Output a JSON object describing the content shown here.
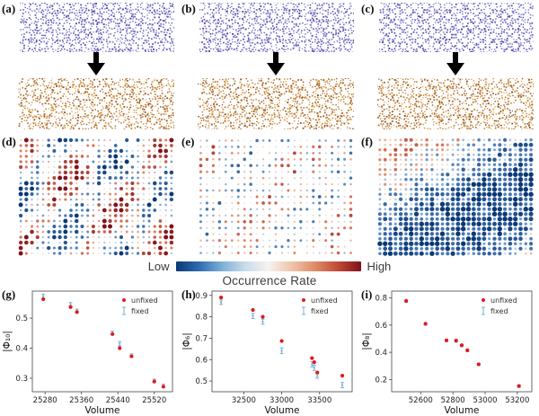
{
  "lattice_panels": [
    {
      "label": "(a)",
      "structure": "quasicrystal-decagonal"
    },
    {
      "label": "(b)",
      "structure": "quasicrystal-decagonal"
    },
    {
      "label": "(c)",
      "structure": "periodic-rows"
    }
  ],
  "dot_panels": [
    {
      "label": "(d)"
    },
    {
      "label": "(e)"
    },
    {
      "label": "(f)"
    }
  ],
  "colorbar": {
    "low_label": "Low",
    "high_label": "High",
    "title": "Occurrence Rate",
    "gradient_left": "#0a3876",
    "gradient_mid": "#f6f3ef",
    "gradient_right": "#7f1119"
  },
  "colors": {
    "lattice_blue": "#6b64bf",
    "lattice_orange": "#c08434",
    "arrow": "#000000",
    "unfixed_marker": "#e01a1a",
    "fixed_marker": "#7ab0d4"
  },
  "chart_data": [
    {
      "panel_label": "(g)",
      "type": "scatter",
      "xlabel": "Volume",
      "ylabel": "|Φ₁₀|",
      "xlim": [
        25252,
        25560
      ],
      "ylim": [
        0.255,
        0.59
      ],
      "xticks": [
        25280,
        25360,
        25440,
        25520
      ],
      "yticks": [
        0.3,
        0.4,
        0.5
      ],
      "legend_position": "upper right",
      "series": [
        {
          "name": "fixed",
          "marker": "errorbar",
          "color": "#7ab0d4",
          "x": [
            25276,
            25336,
            25350,
            25428,
            25444,
            25470,
            25520,
            25540
          ],
          "y": [
            0.573,
            0.546,
            0.525,
            0.452,
            0.415,
            0.376,
            0.292,
            0.275
          ],
          "yerr": [
            0.007,
            0.006,
            0.005,
            0.005,
            0.007,
            0.005,
            0.005,
            0.005
          ]
        },
        {
          "name": "unfixed",
          "marker": "dot",
          "color": "#e01a1a",
          "x": [
            25276,
            25336,
            25350,
            25428,
            25444,
            25470,
            25520,
            25540
          ],
          "y": [
            0.563,
            0.537,
            0.52,
            0.447,
            0.4,
            0.373,
            0.289,
            0.272
          ]
        }
      ]
    },
    {
      "panel_label": "(h)",
      "type": "scatter",
      "xlabel": "Volume",
      "ylabel": "|Φ₆|",
      "xlim": [
        32080,
        33930
      ],
      "ylim": [
        0.45,
        0.92
      ],
      "xticks": [
        32500,
        33000,
        33500
      ],
      "yticks": [
        0.5,
        0.6,
        0.7,
        0.8,
        0.9
      ],
      "legend_position": "upper right",
      "series": [
        {
          "name": "fixed",
          "marker": "errorbar",
          "color": "#7ab0d4",
          "x": [
            32200,
            32620,
            32750,
            33000,
            33400,
            33430,
            33470,
            33800
          ],
          "y": [
            0.868,
            0.804,
            0.777,
            0.641,
            0.578,
            0.562,
            0.523,
            0.481
          ],
          "yerr": [
            0.01,
            0.012,
            0.012,
            0.013,
            0.012,
            0.012,
            0.01,
            0.012
          ]
        },
        {
          "name": "unfixed",
          "marker": "dot",
          "color": "#e01a1a",
          "x": [
            32200,
            32620,
            32750,
            33000,
            33400,
            33430,
            33470,
            33800
          ],
          "y": [
            0.89,
            0.832,
            0.8,
            0.687,
            0.607,
            0.588,
            0.54,
            0.525
          ]
        }
      ]
    },
    {
      "panel_label": "(i)",
      "type": "scatter",
      "xlabel": "Volume",
      "ylabel": "|Φ₈|",
      "xlim": [
        52420,
        53290
      ],
      "ylim": [
        0.11,
        0.85
      ],
      "xticks": [
        52600,
        52800,
        53000,
        53200
      ],
      "yticks": [
        0.2,
        0.4,
        0.6,
        0.8
      ],
      "legend_position": "upper right",
      "series": [
        {
          "name": "fixed",
          "marker": "errorbar",
          "color": "#7ab0d4",
          "x": [
            52510,
            52630,
            52760,
            52820,
            52855,
            52890,
            52960,
            53210
          ],
          "y": [
            0.775,
            0.607,
            0.486,
            0.483,
            0.45,
            0.413,
            0.31,
            0.15
          ],
          "yerr": [
            0.008,
            0.008,
            0.008,
            0.008,
            0.008,
            0.008,
            0.008,
            0.008
          ]
        },
        {
          "name": "unfixed",
          "marker": "dot",
          "color": "#e01a1a",
          "x": [
            52510,
            52630,
            52760,
            52820,
            52855,
            52890,
            52960,
            53210
          ],
          "y": [
            0.778,
            0.61,
            0.488,
            0.486,
            0.452,
            0.415,
            0.312,
            0.152
          ]
        }
      ]
    }
  ],
  "legend": {
    "unfixed_label": "unfixed",
    "fixed_label": "fixed"
  }
}
